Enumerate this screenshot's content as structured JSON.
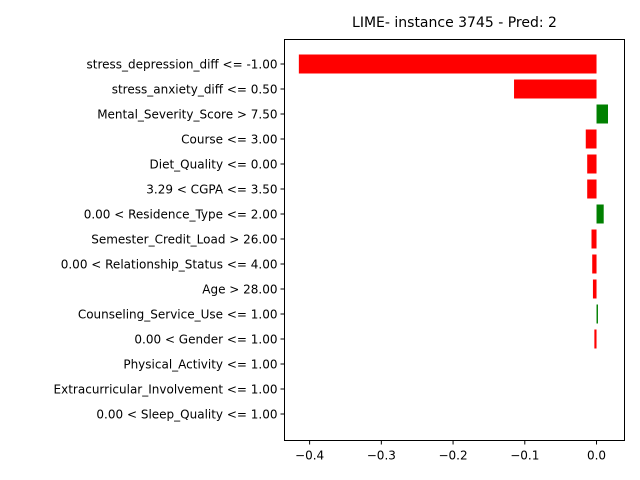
{
  "chart_data": {
    "type": "bar",
    "orientation": "horizontal",
    "title": "LIME- instance 3745 - Pred: 2",
    "xlabel": "",
    "ylabel": "",
    "xlim": [
      -0.435,
      0.039
    ],
    "xticks": [
      -0.4,
      -0.3,
      -0.2,
      -0.1,
      0.0
    ],
    "xtick_labels": [
      "−0.4",
      "−0.3",
      "−0.2",
      "−0.1",
      "0.0"
    ],
    "positive_color": "#008000",
    "negative_color": "#ff0000",
    "grid": false,
    "categories": [
      "stress_depression_diff <= -1.00",
      "stress_anxiety_diff <= 0.50",
      "Mental_Severity_Score > 7.50",
      "Course <= 3.00",
      "Diet_Quality <= 0.00",
      "3.29 < CGPA <= 3.50",
      "0.00 < Residence_Type <= 2.00",
      "Semester_Credit_Load > 26.00",
      "0.00 < Relationship_Status <= 4.00",
      "Age > 28.00",
      "Counseling_Service_Use <= 1.00",
      "0.00 < Gender <= 1.00",
      "Physical_Activity <= 1.00",
      "Extracurricular_Involvement <= 1.00",
      "0.00 < Sleep_Quality <= 1.00"
    ],
    "values": [
      -0.415,
      -0.115,
      0.016,
      -0.015,
      -0.013,
      -0.013,
      0.01,
      -0.007,
      -0.006,
      -0.005,
      0.002,
      -0.003,
      0.0,
      0.0,
      0.0
    ]
  }
}
